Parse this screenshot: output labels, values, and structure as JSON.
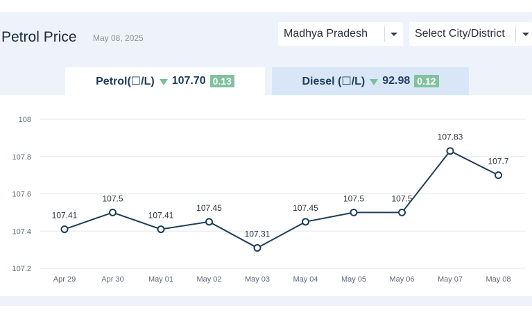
{
  "header": {
    "title": "Petrol Price",
    "date": "May 08, 2025"
  },
  "filters": {
    "state": "Madhya Pradesh",
    "city_placeholder": "Select City/District"
  },
  "tabs": [
    {
      "label": "Petrol(☐/L)",
      "price": "107.70",
      "change": "0.13",
      "trend": "down"
    },
    {
      "label": "Diesel (☐/L)",
      "price": "92.98",
      "change": "0.12",
      "trend": "down"
    }
  ],
  "colors": {
    "line": "#1f3d5c",
    "badge": "#80c29e",
    "active_tab": "#ffffff",
    "inactive_tab": "#d8e6f7",
    "panel": "#eef3fb"
  },
  "chart_data": {
    "type": "line",
    "title": "",
    "xlabel": "",
    "ylabel": "",
    "x": [
      "Apr 29",
      "Apr 30",
      "May 01",
      "May 02",
      "May 03",
      "May 04",
      "May 05",
      "May 06",
      "May 07",
      "May 08"
    ],
    "series": [
      {
        "values": [
          107.41,
          107.5,
          107.41,
          107.45,
          107.31,
          107.45,
          107.5,
          107.5,
          107.83,
          107.7
        ]
      }
    ],
    "data_labels": [
      "107.41",
      "107.5",
      "107.41",
      "107.45",
      "107.31",
      "107.45",
      "107.5",
      "107.5",
      "107.83",
      "107.7"
    ],
    "ylim": [
      107.2,
      108
    ],
    "yticks": [
      "108",
      "107.8",
      "107.6",
      "107.4",
      "107.2"
    ],
    "grid": true
  }
}
